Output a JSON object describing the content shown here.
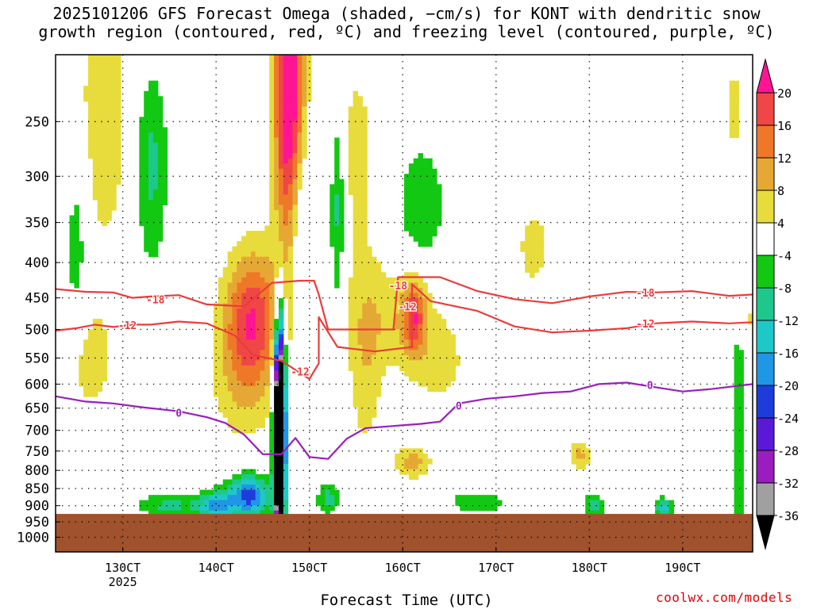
{
  "title": {
    "line1": "2025101206 GFS Forecast Omega (shaded, −cm/s) for KONT with dendritic snow",
    "line2": "growth region (contoured, red, ºC) and freezing level (contoured, purple, ºC)"
  },
  "credit": "coolwx.com/models",
  "chart_data": {
    "type": "heatmap",
    "xlabel": "Forecast Time (UTC)",
    "ylabel": "",
    "x_ticks": [
      "130CT",
      "140CT",
      "150CT",
      "160CT",
      "170CT",
      "180CT",
      "190CT"
    ],
    "x_tick_days": [
      13,
      14,
      15,
      16,
      17,
      18,
      19
    ],
    "x_sub_label": "2025",
    "x_range_days": [
      12.28,
      19.75
    ],
    "y_ticks": [
      250,
      300,
      350,
      400,
      450,
      500,
      550,
      600,
      650,
      700,
      750,
      800,
      850,
      900,
      950,
      1000
    ],
    "y_range_hpa": [
      1050,
      200
    ],
    "ground_level_hpa": 925,
    "colorbar": {
      "levels": [
        -36,
        -32,
        -28,
        -24,
        -20,
        -16,
        -12,
        -8,
        -4,
        4,
        8,
        12,
        16,
        20
      ],
      "labels": [
        "20",
        "16",
        "12",
        "8",
        "4",
        "-4",
        "-8",
        "-12",
        "-16",
        "-20",
        "-24",
        "-28",
        "-32",
        "-36"
      ],
      "colors": [
        "#000000",
        "#a0a0a0",
        "#9a1dc0",
        "#5a19d6",
        "#1e3cdc",
        "#2096e6",
        "#1ec8c8",
        "#1ec88c",
        "#12c812",
        "#ffffff",
        "#e8dc3c",
        "#e6a834",
        "#ee7828",
        "#f04646",
        "#ff1493"
      ]
    },
    "contours": [
      {
        "name": "dendritic -18C",
        "label": "-18",
        "color": "#ec3b3b",
        "points": [
          [
            12.28,
            437
          ],
          [
            12.6,
            441
          ],
          [
            12.9,
            442
          ],
          [
            13.1,
            450
          ],
          [
            13.3,
            448
          ],
          [
            13.6,
            446
          ],
          [
            13.9,
            460
          ],
          [
            14.3,
            463
          ],
          [
            14.6,
            428
          ],
          [
            14.9,
            425
          ],
          [
            15.05,
            425
          ],
          [
            15.1,
            445
          ],
          [
            15.2,
            500
          ],
          [
            15.9,
            500
          ],
          [
            15.95,
            420
          ],
          [
            16.4,
            420
          ],
          [
            16.8,
            440
          ],
          [
            17.2,
            452
          ],
          [
            17.6,
            458
          ],
          [
            18.0,
            448
          ],
          [
            18.4,
            441
          ],
          [
            18.7,
            442
          ],
          [
            19.1,
            440
          ],
          [
            19.5,
            447
          ],
          [
            19.75,
            445
          ]
        ]
      },
      {
        "name": "dendritic -12C",
        "label": "-12",
        "color": "#ec3b3b",
        "points": [
          [
            12.28,
            502
          ],
          [
            12.5,
            498
          ],
          [
            12.7,
            492
          ],
          [
            12.9,
            496
          ],
          [
            13.1,
            492
          ],
          [
            13.3,
            492
          ],
          [
            13.6,
            487
          ],
          [
            13.9,
            490
          ],
          [
            14.2,
            510
          ],
          [
            14.4,
            545
          ],
          [
            14.7,
            555
          ],
          [
            15.0,
            590
          ],
          [
            15.1,
            560
          ],
          [
            15.1,
            480
          ],
          [
            15.3,
            530
          ],
          [
            15.7,
            538
          ],
          [
            16.1,
            530
          ],
          [
            16.1,
            430
          ],
          [
            16.3,
            455
          ],
          [
            16.8,
            470
          ],
          [
            17.2,
            495
          ],
          [
            17.6,
            505
          ],
          [
            18.0,
            502
          ],
          [
            18.4,
            498
          ],
          [
            18.7,
            490
          ],
          [
            19.1,
            487
          ],
          [
            19.5,
            490
          ],
          [
            19.75,
            488
          ]
        ]
      },
      {
        "name": "freezing level 0C",
        "label": "0",
        "color": "#9a1dbf",
        "points": [
          [
            12.28,
            625
          ],
          [
            12.6,
            636
          ],
          [
            12.9,
            640
          ],
          [
            13.2,
            648
          ],
          [
            13.6,
            657
          ],
          [
            13.9,
            670
          ],
          [
            14.1,
            683
          ],
          [
            14.3,
            710
          ],
          [
            14.5,
            758
          ],
          [
            14.7,
            758
          ],
          [
            14.85,
            718
          ],
          [
            15.0,
            765
          ],
          [
            15.2,
            770
          ],
          [
            15.4,
            720
          ],
          [
            15.6,
            695
          ],
          [
            15.9,
            690
          ],
          [
            16.2,
            685
          ],
          [
            16.4,
            680
          ],
          [
            16.6,
            640
          ],
          [
            16.9,
            630
          ],
          [
            17.2,
            625
          ],
          [
            17.5,
            618
          ],
          [
            17.8,
            615
          ],
          [
            18.1,
            600
          ],
          [
            18.4,
            597
          ],
          [
            18.7,
            606
          ],
          [
            19.0,
            615
          ],
          [
            19.3,
            610
          ],
          [
            19.75,
            600
          ]
        ]
      }
    ],
    "contour_labels": [
      {
        "text": "-18",
        "x": 13.35,
        "p": 452
      },
      {
        "text": "-12",
        "x": 13.05,
        "p": 493
      },
      {
        "text": "-12",
        "x": 14.9,
        "p": 575
      },
      {
        "text": "-18",
        "x": 15.95,
        "p": 432
      },
      {
        "text": "-12",
        "x": 16.05,
        "p": 463
      },
      {
        "text": "-18",
        "x": 18.6,
        "p": 442
      },
      {
        "text": "-12",
        "x": 18.6,
        "p": 490
      },
      {
        "text": "0",
        "x": 13.6,
        "p": 660
      },
      {
        "text": "0",
        "x": 16.6,
        "p": 645
      },
      {
        "text": "0",
        "x": 18.65,
        "p": 602
      }
    ],
    "omega_features": [
      {
        "name": "strong ascent core",
        "value": 22,
        "x0": 14.55,
        "x1": 14.95,
        "p_top": 200,
        "p_bot": 470
      },
      {
        "name": "ascent plume",
        "value": 12,
        "x0": 14.0,
        "x1": 14.8,
        "p_top": 380,
        "p_bot": 620
      },
      {
        "name": "ascent secondary",
        "value": 12,
        "x0": 16.0,
        "x1": 16.3,
        "p_top": 410,
        "p_bot": 560
      },
      {
        "name": "descent core",
        "value": -36,
        "x0": 14.6,
        "x1": 14.8,
        "p_top": 470,
        "p_bot": 920
      },
      {
        "name": "weak descent",
        "value": -8,
        "x0": 12.9,
        "x1": 13.4,
        "p_top": 220,
        "p_bot": 350
      },
      {
        "name": "low-level descent",
        "value": -12,
        "x0": 14.2,
        "x1": 14.6,
        "p_top": 760,
        "p_bot": 925
      }
    ]
  }
}
